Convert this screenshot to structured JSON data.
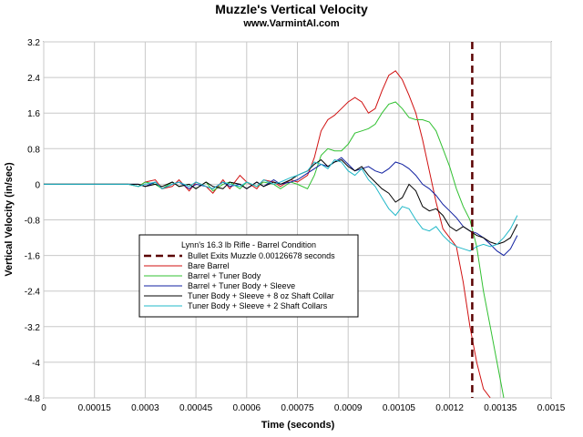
{
  "chart_data": {
    "type": "line",
    "title": "Muzzle's Vertical Velocity",
    "subtitle": "www.VarmintAl.com",
    "xlabel": "Time (seconds)",
    "ylabel": "Vertical Velocity (in/sec)",
    "xlim": [
      0,
      0.0015
    ],
    "ylim": [
      -4.8,
      3.2
    ],
    "xticks": [
      0,
      0.00015,
      0.0003,
      0.00045,
      0.0006,
      0.00075,
      0.0009,
      0.00105,
      0.0012,
      0.00135,
      0.0015
    ],
    "xtick_labels": [
      "0",
      "0.00015",
      "0.0003",
      "0.00045",
      "0.0006",
      "0.00075",
      "0.0009",
      "0.00105",
      "0.0012",
      "0.00135",
      "0.0015"
    ],
    "yticks": [
      3.2,
      2.4,
      1.6,
      0.8,
      0,
      -0.8,
      -1.6,
      -2.4,
      -3.2,
      -4,
      -4.8
    ],
    "ytick_labels": [
      "3.2",
      "2.4",
      "1.6",
      "0.8",
      "0",
      "-0.8",
      "-1.6",
      "-2.4",
      "-3.2",
      "-4",
      "-4.8"
    ],
    "grid": true,
    "legend": {
      "position": "center-left",
      "title": "Lynn's 16.3 lb Rifle - Barrel Condition"
    },
    "vline": {
      "x": 0.00126678,
      "label": "Bullet Exits Muzzle 0.00126678 seconds",
      "color": "#5a0000",
      "style": "dashed"
    },
    "series": [
      {
        "name": "Bare Barrel",
        "color": "#d01010",
        "x": [
          0,
          0.00025,
          0.00028,
          0.0003,
          0.00033,
          0.00035,
          0.00038,
          0.0004,
          0.00043,
          0.00045,
          0.00048,
          0.0005,
          0.00053,
          0.00055,
          0.00058,
          0.0006,
          0.00063,
          0.00065,
          0.00068,
          0.0007,
          0.00073,
          0.00075,
          0.00078,
          0.0008,
          0.00082,
          0.00084,
          0.00086,
          0.00088,
          0.0009,
          0.00092,
          0.00094,
          0.00096,
          0.00098,
          0.001,
          0.00102,
          0.00104,
          0.00106,
          0.00108,
          0.0011,
          0.00112,
          0.00114,
          0.00116,
          0.00118,
          0.0012,
          0.00122,
          0.00124,
          0.00126,
          0.00128,
          0.0013,
          0.00132
        ],
        "y": [
          0,
          0,
          -0.05,
          0.05,
          0.1,
          -0.1,
          -0.05,
          0.1,
          -0.15,
          0.05,
          -0.05,
          -0.2,
          0.1,
          -0.1,
          0.2,
          0.05,
          -0.1,
          0.1,
          0.05,
          -0.05,
          0.1,
          0.05,
          0.2,
          0.6,
          1.2,
          1.45,
          1.55,
          1.7,
          1.85,
          1.95,
          1.85,
          1.6,
          1.7,
          2.1,
          2.45,
          2.55,
          2.35,
          2.0,
          1.6,
          1.0,
          0.3,
          -0.4,
          -1.0,
          -1.2,
          -1.4,
          -2.2,
          -3.2,
          -4.0,
          -4.6,
          -4.8
        ]
      },
      {
        "name": "Barrel + Tuner Body",
        "color": "#30c030",
        "x": [
          0,
          0.00025,
          0.00028,
          0.0003,
          0.00033,
          0.00035,
          0.00038,
          0.0004,
          0.00043,
          0.00045,
          0.00048,
          0.0005,
          0.00053,
          0.00055,
          0.00058,
          0.0006,
          0.00063,
          0.00065,
          0.00068,
          0.0007,
          0.00073,
          0.00075,
          0.00078,
          0.0008,
          0.00082,
          0.00084,
          0.00086,
          0.00088,
          0.0009,
          0.00092,
          0.00094,
          0.00096,
          0.00098,
          0.001,
          0.00102,
          0.00104,
          0.00106,
          0.00108,
          0.0011,
          0.00112,
          0.00114,
          0.00116,
          0.00118,
          0.0012,
          0.00122,
          0.00124,
          0.00126,
          0.00128,
          0.0013,
          0.00132,
          0.00134,
          0.00136
        ],
        "y": [
          0,
          0,
          -0.05,
          0.05,
          0.0,
          -0.1,
          0.05,
          -0.05,
          0.0,
          -0.1,
          0.05,
          -0.15,
          0.0,
          0.05,
          -0.1,
          0.05,
          -0.05,
          0.05,
          0.0,
          -0.1,
          0.05,
          0.0,
          -0.1,
          0.2,
          0.65,
          0.8,
          0.75,
          0.75,
          0.9,
          1.15,
          1.2,
          1.25,
          1.35,
          1.6,
          1.8,
          1.85,
          1.7,
          1.5,
          1.45,
          1.45,
          1.4,
          1.2,
          0.8,
          0.4,
          -0.1,
          -0.5,
          -0.8,
          -1.4,
          -2.4,
          -3.2,
          -4.0,
          -4.8
        ]
      },
      {
        "name": "Barrel + Tuner Body + Sleeve",
        "color": "#1020a0",
        "x": [
          0,
          0.00025,
          0.00028,
          0.0003,
          0.00033,
          0.00035,
          0.00038,
          0.0004,
          0.00043,
          0.00045,
          0.00048,
          0.0005,
          0.00053,
          0.00055,
          0.00058,
          0.0006,
          0.00063,
          0.00065,
          0.00068,
          0.0007,
          0.00073,
          0.00075,
          0.00078,
          0.0008,
          0.00082,
          0.00084,
          0.00086,
          0.00088,
          0.0009,
          0.00092,
          0.00094,
          0.00096,
          0.00098,
          0.001,
          0.00102,
          0.00104,
          0.00106,
          0.00108,
          0.0011,
          0.00112,
          0.00114,
          0.00116,
          0.00118,
          0.0012,
          0.00122,
          0.00124,
          0.00126,
          0.00128,
          0.0013,
          0.00132,
          0.00134,
          0.00136,
          0.00138,
          0.0014
        ],
        "y": [
          0,
          0,
          0.0,
          -0.05,
          0.05,
          -0.1,
          0.0,
          0.05,
          -0.1,
          0.0,
          -0.05,
          -0.1,
          0.05,
          -0.05,
          0.0,
          -0.1,
          0.05,
          -0.05,
          0.1,
          0.0,
          0.05,
          0.1,
          0.25,
          0.35,
          0.45,
          0.4,
          0.5,
          0.6,
          0.45,
          0.3,
          0.35,
          0.4,
          0.3,
          0.25,
          0.35,
          0.5,
          0.45,
          0.35,
          0.2,
          0.0,
          -0.1,
          -0.25,
          -0.45,
          -0.6,
          -0.75,
          -0.95,
          -1.05,
          -1.1,
          -1.2,
          -1.35,
          -1.5,
          -1.6,
          -1.45,
          -1.15
        ]
      },
      {
        "name": "Tuner Body + Sleeve + 8 oz Shaft Collar",
        "color": "#000000",
        "x": [
          0,
          0.00025,
          0.00028,
          0.0003,
          0.00033,
          0.00035,
          0.00038,
          0.0004,
          0.00043,
          0.00045,
          0.00048,
          0.0005,
          0.00053,
          0.00055,
          0.00058,
          0.0006,
          0.00063,
          0.00065,
          0.00068,
          0.0007,
          0.00073,
          0.00075,
          0.00078,
          0.0008,
          0.00082,
          0.00084,
          0.00086,
          0.00088,
          0.0009,
          0.00092,
          0.00094,
          0.00096,
          0.00098,
          0.001,
          0.00102,
          0.00104,
          0.00106,
          0.00108,
          0.0011,
          0.00112,
          0.00114,
          0.00116,
          0.00118,
          0.0012,
          0.00122,
          0.00124,
          0.00126,
          0.00128,
          0.0013,
          0.00132,
          0.00134,
          0.00136,
          0.00138,
          0.0014
        ],
        "y": [
          0,
          0,
          0.0,
          -0.05,
          0.0,
          -0.05,
          0.05,
          -0.05,
          0.0,
          -0.1,
          0.05,
          -0.05,
          -0.1,
          0.05,
          0.0,
          -0.1,
          0.05,
          -0.05,
          0.05,
          0.0,
          0.1,
          0.2,
          0.3,
          0.45,
          0.55,
          0.4,
          0.5,
          0.55,
          0.4,
          0.3,
          0.4,
          0.2,
          0.05,
          -0.1,
          -0.2,
          -0.4,
          -0.3,
          0.0,
          -0.15,
          -0.5,
          -0.6,
          -0.55,
          -0.7,
          -0.95,
          -1.05,
          -0.95,
          -1.05,
          -1.15,
          -1.2,
          -1.3,
          -1.35,
          -1.3,
          -1.2,
          -0.9
        ]
      },
      {
        "name": "Tuner Body + Sleeve + 2 Shaft Collars",
        "color": "#20b8c8",
        "x": [
          0,
          0.00025,
          0.00028,
          0.0003,
          0.00033,
          0.00035,
          0.00038,
          0.0004,
          0.00043,
          0.00045,
          0.00048,
          0.0005,
          0.00053,
          0.00055,
          0.00058,
          0.0006,
          0.00063,
          0.00065,
          0.00068,
          0.0007,
          0.00073,
          0.00075,
          0.00078,
          0.0008,
          0.00082,
          0.00084,
          0.00086,
          0.00088,
          0.0009,
          0.00092,
          0.00094,
          0.00096,
          0.00098,
          0.001,
          0.00102,
          0.00104,
          0.00106,
          0.00108,
          0.0011,
          0.00112,
          0.00114,
          0.00116,
          0.00118,
          0.0012,
          0.00122,
          0.00124,
          0.00126,
          0.00128,
          0.0013,
          0.00132,
          0.00134,
          0.00136,
          0.00138,
          0.0014
        ],
        "y": [
          0,
          0,
          -0.05,
          0.0,
          0.05,
          -0.1,
          0.0,
          0.05,
          -0.05,
          0.05,
          -0.05,
          -0.1,
          0.05,
          0.0,
          -0.05,
          0.05,
          -0.05,
          0.1,
          0.0,
          0.05,
          0.15,
          0.2,
          0.3,
          0.5,
          0.45,
          0.35,
          0.55,
          0.5,
          0.3,
          0.2,
          0.35,
          0.1,
          -0.05,
          -0.3,
          -0.55,
          -0.7,
          -0.5,
          -0.55,
          -0.8,
          -1.0,
          -1.05,
          -0.95,
          -1.15,
          -1.3,
          -1.4,
          -1.45,
          -1.5,
          -1.4,
          -1.35,
          -1.4,
          -1.35,
          -1.2,
          -1.0,
          -0.7
        ]
      }
    ]
  }
}
